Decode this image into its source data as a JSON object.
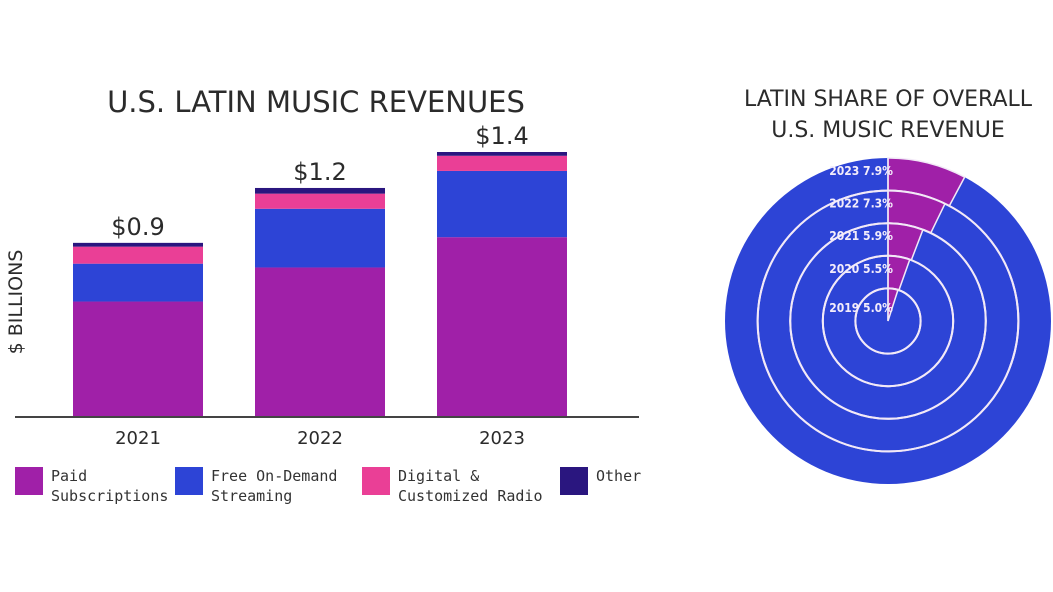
{
  "chart_data": [
    {
      "type": "bar",
      "stacked": true,
      "title": "U.S. LATIN MUSIC REVENUES",
      "xlabel": "",
      "ylabel": "$ BILLIONS",
      "ylim": [
        0,
        1.4
      ],
      "categories": [
        "2021",
        "2022",
        "2023"
      ],
      "total_labels": [
        "$0.9",
        "$1.2",
        "$1.4"
      ],
      "series": [
        {
          "name": "Paid Subscriptions",
          "legend_lines": [
            "Paid",
            "Subscriptions"
          ],
          "color": "#a020a8",
          "values": [
            0.61,
            0.79,
            0.95
          ]
        },
        {
          "name": "Free On-Demand Streaming",
          "legend_lines": [
            "Free On-Demand",
            "Streaming"
          ],
          "color": "#2d44d6",
          "values": [
            0.2,
            0.31,
            0.35
          ]
        },
        {
          "name": "Digital & Customized Radio",
          "legend_lines": [
            "Digital &",
            "Customized Radio"
          ],
          "color": "#ea3f96",
          "values": [
            0.09,
            0.08,
            0.08
          ]
        },
        {
          "name": "Other",
          "legend_lines": [
            "Other"
          ],
          "color": "#2a167f",
          "values": [
            0.02,
            0.03,
            0.02
          ]
        }
      ],
      "legend_position": "bottom",
      "grid": false
    },
    {
      "type": "pie",
      "variant": "concentric-rings",
      "title_lines": [
        "LATIN SHARE OF OVERALL",
        "U.S. MUSIC REVENUE"
      ],
      "rings": [
        {
          "year": "2019",
          "share_pct": 5.0,
          "label": "2019 5.0%"
        },
        {
          "year": "2020",
          "share_pct": 5.5,
          "label": "2020 5.5%"
        },
        {
          "year": "2021",
          "share_pct": 5.9,
          "label": "2021 5.9%"
        },
        {
          "year": "2022",
          "share_pct": 7.3,
          "label": "2022 7.3%"
        },
        {
          "year": "2023",
          "share_pct": 7.9,
          "label": "2023 7.9%"
        }
      ],
      "colors": {
        "latin": "#a020a8",
        "rest": "#2d44d6",
        "ring_stroke": "#f2e9f7"
      }
    }
  ]
}
